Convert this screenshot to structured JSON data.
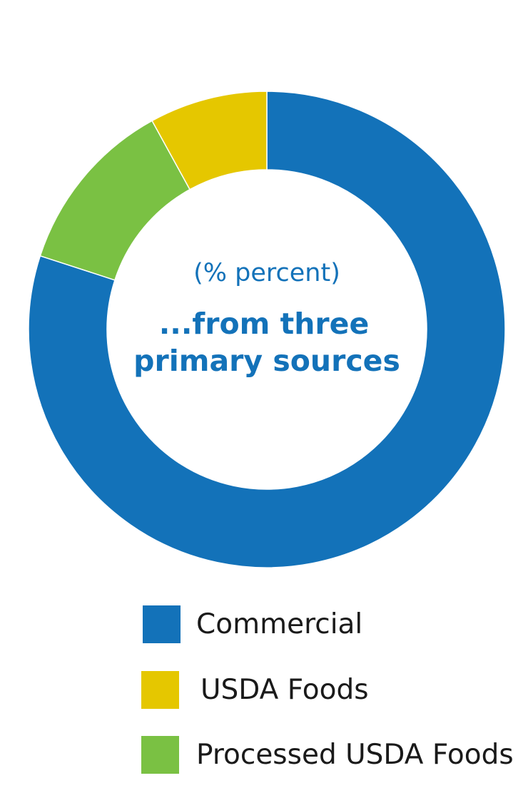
{
  "chart_data": {
    "type": "pie",
    "style": "donut",
    "center_subtitle": "(% percent)",
    "center_title_lines": [
      "...from three",
      "primary sources"
    ],
    "unit": "%",
    "slices": [
      {
        "label": "Commercial",
        "value": 80,
        "color": "#1372b9"
      },
      {
        "label": "USDA Foods",
        "value": 8,
        "color": "#e5c700"
      },
      {
        "label": "Processed USDA Foods",
        "value": 12,
        "color": "#7ac143"
      }
    ],
    "draw_order": [
      0,
      2,
      1
    ],
    "center_text_color": "#1372b9",
    "legend_placement": "bottom"
  }
}
